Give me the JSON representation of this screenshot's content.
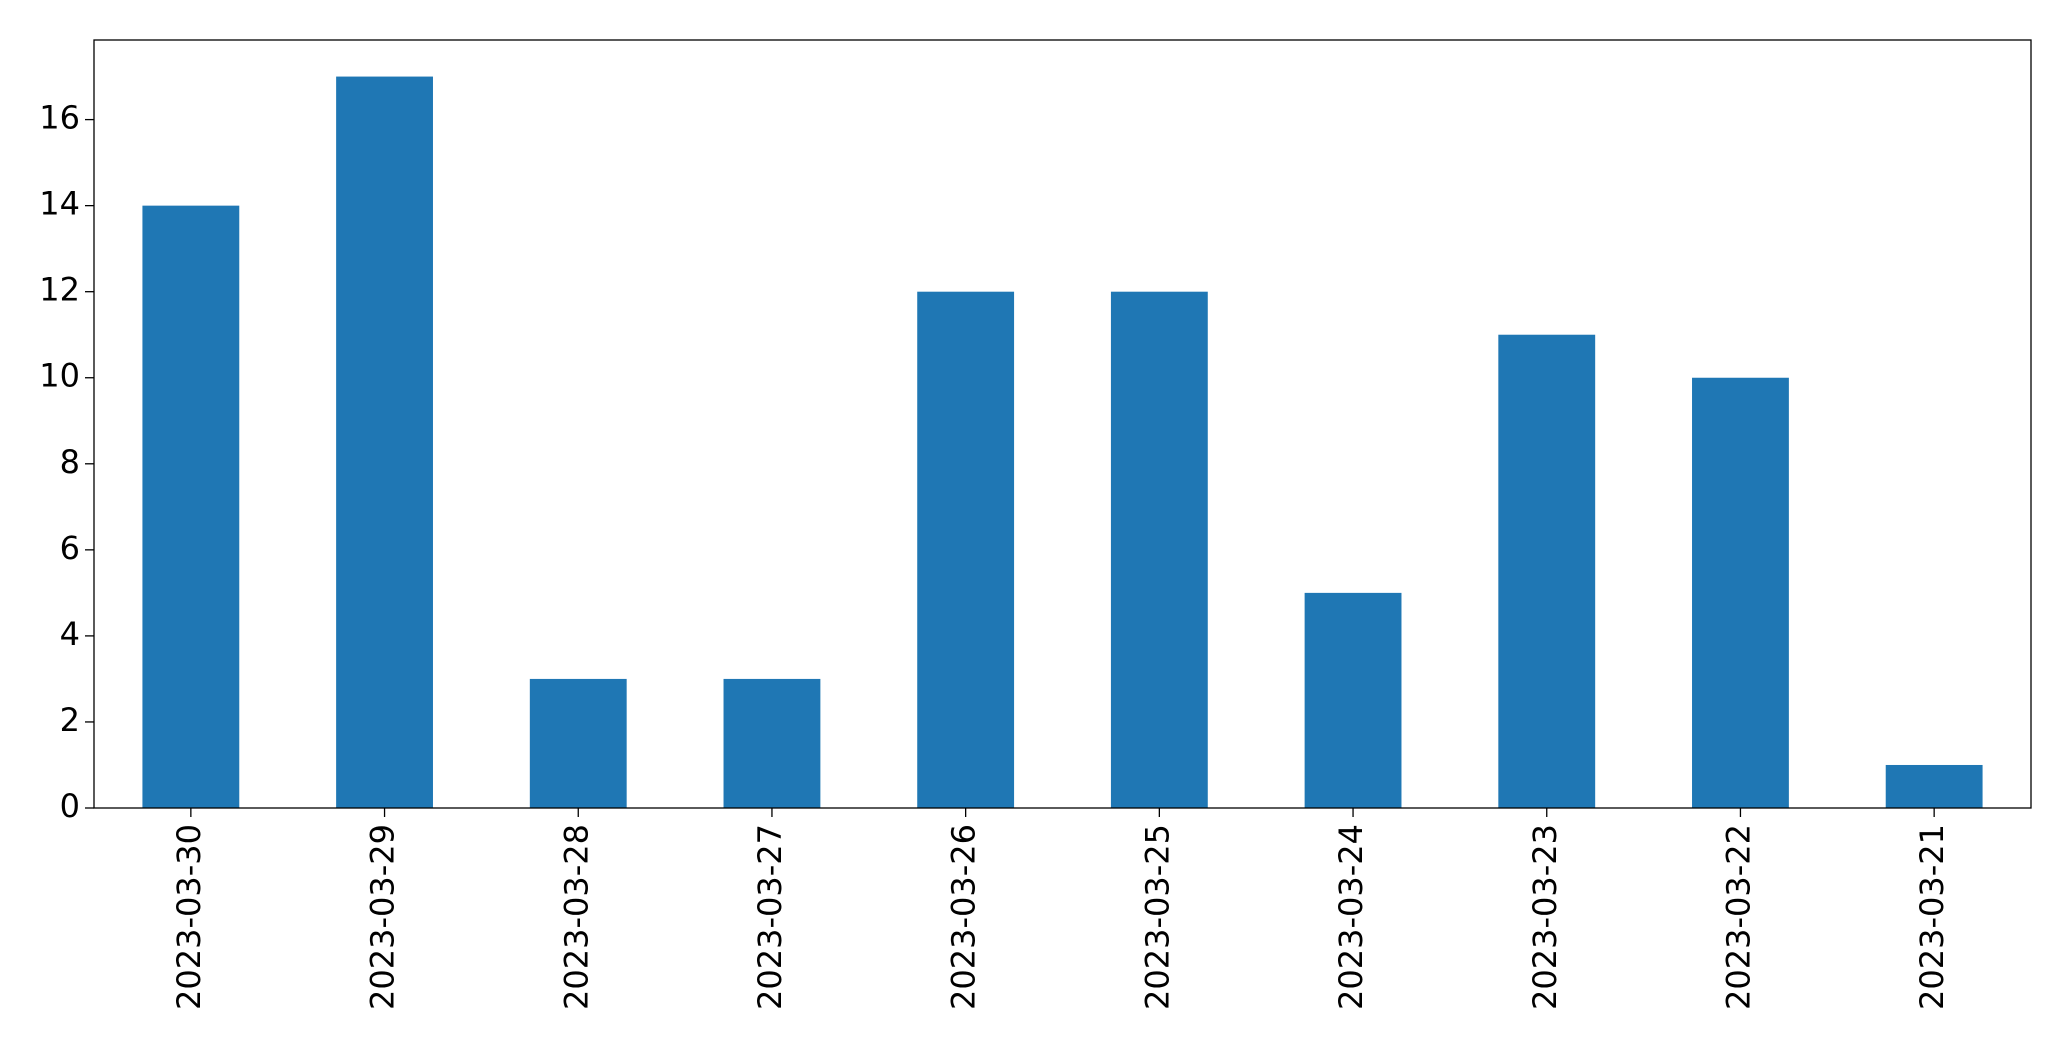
{
  "chart_data": {
    "type": "bar",
    "categories": [
      "2023-03-30",
      "2023-03-29",
      "2023-03-28",
      "2023-03-27",
      "2023-03-26",
      "2023-03-25",
      "2023-03-24",
      "2023-03-23",
      "2023-03-22",
      "2023-03-21"
    ],
    "values": [
      14,
      17,
      3,
      3,
      12,
      12,
      5,
      11,
      10,
      1
    ],
    "color": "#1f77b4",
    "ylim": [
      0,
      17.85
    ],
    "yticks": [
      0,
      2,
      4,
      6,
      8,
      10,
      12,
      14,
      16
    ],
    "grid": false
  }
}
